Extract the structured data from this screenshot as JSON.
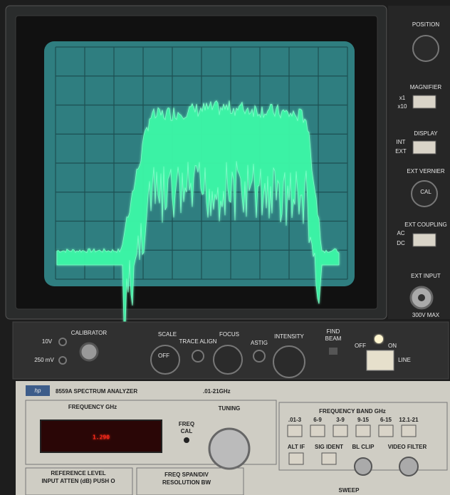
{
  "right_panel": {
    "position": "POSITION",
    "magnifier": "MAGNIFIER",
    "x1": "x1",
    "x10": "x10",
    "display": "DISPLAY",
    "int": "INT",
    "ext": "EXT",
    "ext_vernier": "EXT VERNIER",
    "cal": "CAL",
    "ext_coupling": "EXT COUPLING",
    "ac": "AC",
    "dc": "DC",
    "ext_input": "EXT INPUT",
    "max": "300V MAX"
  },
  "control_strip": {
    "calibrator": "CALIBRATOR",
    "v10": "10V",
    "mv250": "250 mV",
    "scale": "SCALE",
    "scale_off": "OFF",
    "trace_align": "TRACE ALIGN",
    "focus": "FOCUS",
    "astig": "ASTIG",
    "intensity": "INTENSITY",
    "find": "FIND",
    "beam": "BEAM",
    "off": "OFF",
    "on": "ON",
    "line": "LINE"
  },
  "analyzer": {
    "logo": "hp",
    "model": "8559A SPECTRUM ANALYZER",
    "range": ".01-21GHz",
    "frequency_label": "FREQUENCY GHz",
    "readout": "1.290",
    "freq": "FREQ",
    "cal": "CAL",
    "tuning": "TUNING",
    "band_title": "FREQUENCY BAND GHz",
    "bands": [
      ".01-3",
      "6-9",
      "3-9",
      "9-15",
      "6-15",
      "12.1-21"
    ],
    "alt_if": "ALT IF",
    "sig_ident": "SIG IDENT",
    "bl_clip": "BL CLIP",
    "video_filter": "VIDEO FILTER",
    "reference_level": "REFERENCE LEVEL",
    "input_atten": "INPUT ATTEN (dB) PUSH O",
    "freq_span": "FREQ SPAN/DIV",
    "resolution_bw": "RESOLUTION BW",
    "sweep": "SWEEP"
  }
}
